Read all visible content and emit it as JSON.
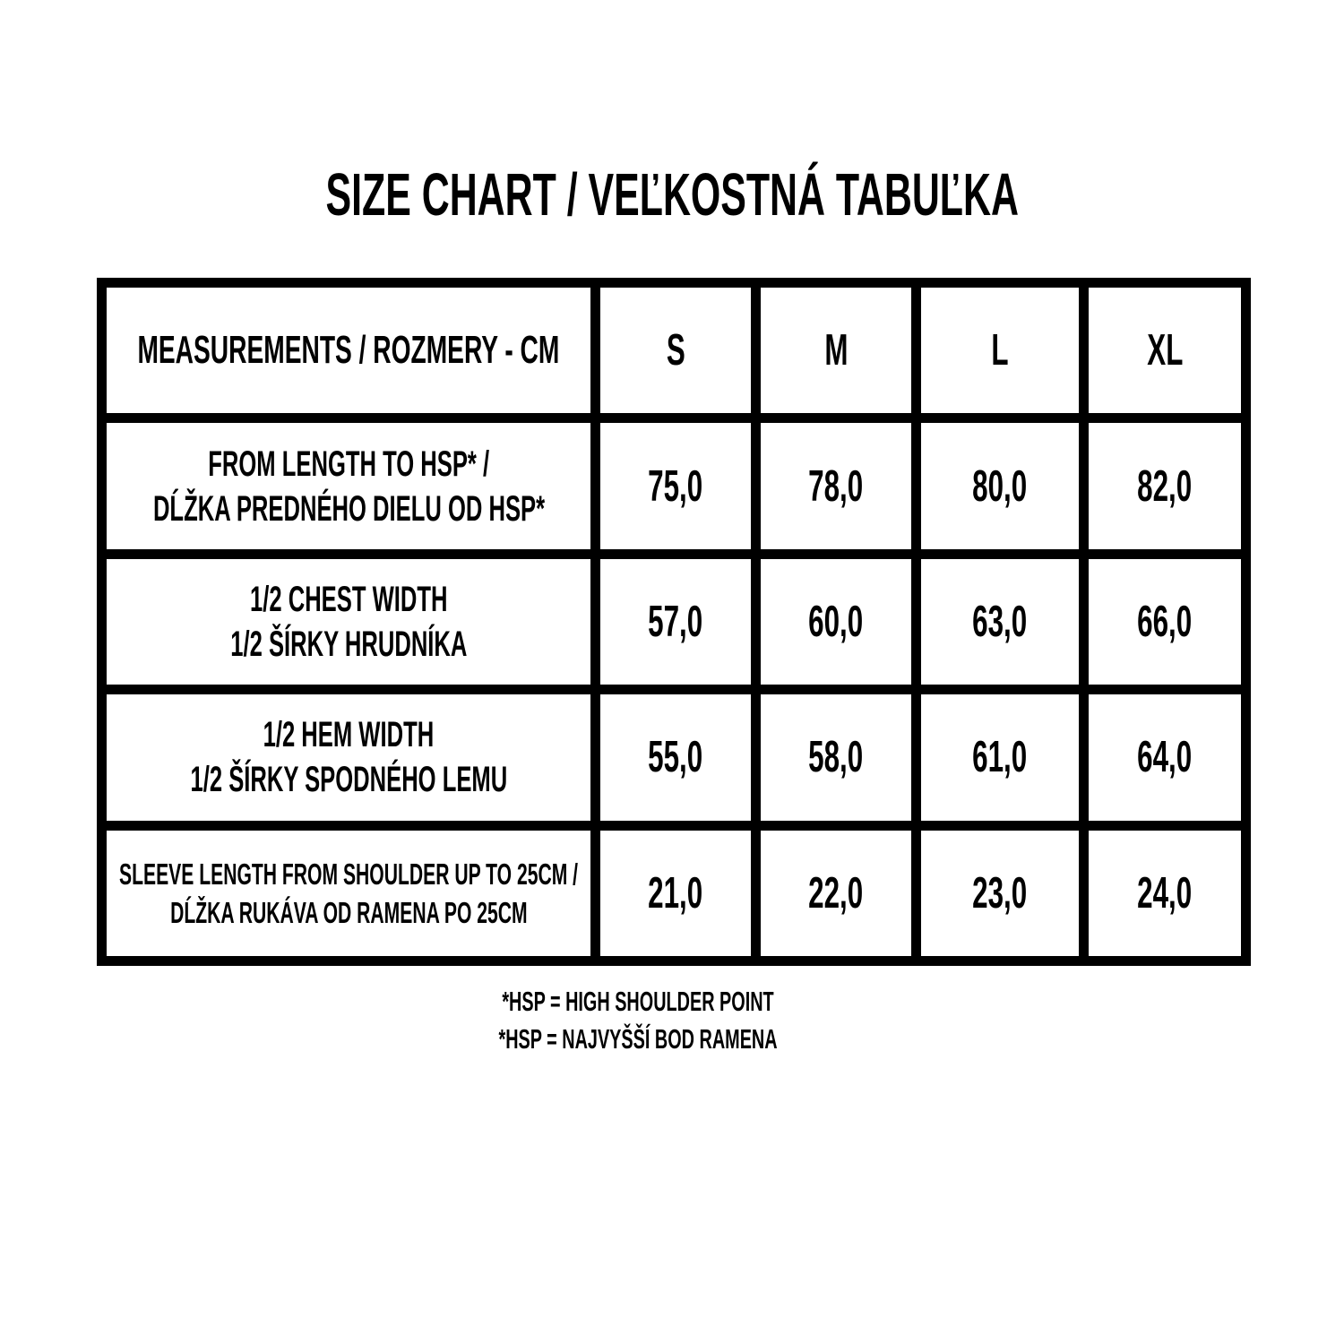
{
  "title": "SIZE CHART / VEĽKOSTNÁ TABUĽKA",
  "table": {
    "header": {
      "measurements": "MEASUREMENTS / ROZMERY - CM",
      "sizes": [
        "S",
        "M",
        "L",
        "XL"
      ]
    },
    "rows": [
      {
        "label_line1": "FROM LENGTH TO HSP* /",
        "label_line2": "DĹŽKA PREDNÉHO DIELU OD HSP*",
        "values": [
          "75,0",
          "78,0",
          "80,0",
          "82,0"
        ]
      },
      {
        "label_line1": "1/2 CHEST WIDTH",
        "label_line2": "1/2 ŠÍRKY HRUDNÍKA",
        "values": [
          "57,0",
          "60,0",
          "63,0",
          "66,0"
        ]
      },
      {
        "label_line1": "1/2 HEM WIDTH",
        "label_line2": "1/2 ŠÍRKY SPODNÉHO LEMU",
        "values": [
          "55,0",
          "58,0",
          "61,0",
          "64,0"
        ]
      },
      {
        "label_line1": "SLEEVE LENGTH FROM SHOULDER UP TO 25CM /",
        "label_line2": "DĹŽKA RUKÁVA OD RAMENA PO 25CM",
        "values": [
          "21,0",
          "22,0",
          "23,0",
          "24,0"
        ]
      }
    ]
  },
  "footnotes": {
    "line1": "*HSP = HIGH SHOULDER POINT",
    "line2": "*HSP = NAJVYŠŠÍ BOD RAMENA"
  },
  "colors": {
    "text": "#000000",
    "border": "#000000",
    "background": "#ffffff"
  }
}
